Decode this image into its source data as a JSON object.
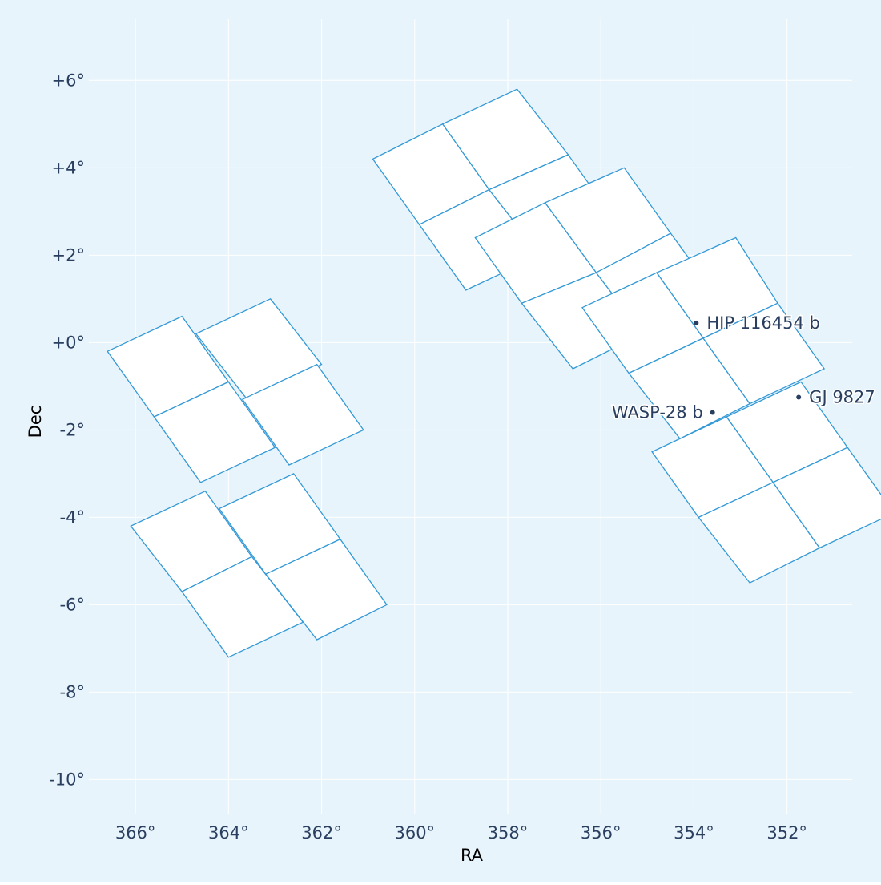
{
  "chart_data": {
    "type": "scatter",
    "title": "",
    "xlabel": "RA",
    "ylabel": "Dec",
    "xlim": [
      367.0,
      350.6
    ],
    "ylim": [
      -10.8,
      7.4
    ],
    "x_ticks": [
      366,
      364,
      362,
      360,
      358,
      356,
      354,
      352
    ],
    "x_tick_labels": [
      "366°",
      "364°",
      "362°",
      "360°",
      "358°",
      "356°",
      "354°",
      "352°"
    ],
    "y_ticks": [
      6,
      4,
      2,
      0,
      -2,
      -4,
      -6,
      -8,
      -10
    ],
    "y_tick_labels": [
      "+6°",
      "+4°",
      "+2°",
      "+0°",
      "-2°",
      "-4°",
      "-6°",
      "-8°",
      "-10°"
    ],
    "grid": true,
    "colors": {
      "background": "#e8f4fb",
      "grid": "#ffffff",
      "footprint": "#3399d6",
      "footprint_fill": "#ffffff",
      "text": "#2a3f5f",
      "marker": "#2a3f5f"
    },
    "series": [
      {
        "kind": "ccd-footprints",
        "tiles": [
          [
            [
              357.8,
              5.8
            ],
            [
              359.4,
              5.0
            ],
            [
              358.4,
              3.5
            ],
            [
              356.7,
              4.3
            ]
          ],
          [
            [
              359.4,
              5.0
            ],
            [
              360.9,
              4.2
            ],
            [
              359.9,
              2.7
            ],
            [
              358.4,
              3.5
            ]
          ],
          [
            [
              358.4,
              3.5
            ],
            [
              359.9,
              2.7
            ],
            [
              358.9,
              1.2
            ],
            [
              357.3,
              2.0
            ]
          ],
          [
            [
              356.7,
              4.3
            ],
            [
              358.4,
              3.5
            ],
            [
              357.3,
              2.0
            ],
            [
              355.7,
              2.8
            ]
          ],
          [
            [
              355.5,
              4.0
            ],
            [
              357.2,
              3.2
            ],
            [
              356.1,
              1.6
            ],
            [
              354.5,
              2.5
            ]
          ],
          [
            [
              357.2,
              3.2
            ],
            [
              358.7,
              2.4
            ],
            [
              357.7,
              0.9
            ],
            [
              356.1,
              1.6
            ]
          ],
          [
            [
              356.1,
              1.6
            ],
            [
              357.7,
              0.9
            ],
            [
              356.6,
              -0.6
            ],
            [
              355.1,
              0.2
            ]
          ],
          [
            [
              354.5,
              2.5
            ],
            [
              356.1,
              1.6
            ],
            [
              355.1,
              0.2
            ],
            [
              353.4,
              0.9
            ]
          ],
          [
            [
              353.1,
              2.4
            ],
            [
              354.8,
              1.6
            ],
            [
              353.8,
              0.1
            ],
            [
              352.2,
              0.9
            ]
          ],
          [
            [
              354.8,
              1.6
            ],
            [
              356.4,
              0.8
            ],
            [
              355.4,
              -0.7
            ],
            [
              353.8,
              0.1
            ]
          ],
          [
            [
              353.8,
              0.1
            ],
            [
              355.4,
              -0.7
            ],
            [
              354.3,
              -2.2
            ],
            [
              352.8,
              -1.4
            ]
          ],
          [
            [
              352.2,
              0.9
            ],
            [
              353.8,
              0.1
            ],
            [
              352.8,
              -1.4
            ],
            [
              351.2,
              -0.6
            ]
          ],
          [
            [
              351.7,
              -0.9
            ],
            [
              353.3,
              -1.7
            ],
            [
              352.3,
              -3.2
            ],
            [
              350.7,
              -2.4
            ]
          ],
          [
            [
              353.3,
              -1.7
            ],
            [
              354.9,
              -2.5
            ],
            [
              353.9,
              -4.0
            ],
            [
              352.3,
              -3.2
            ]
          ],
          [
            [
              352.3,
              -3.2
            ],
            [
              353.9,
              -4.0
            ],
            [
              352.8,
              -5.5
            ],
            [
              351.3,
              -4.7
            ]
          ],
          [
            [
              350.7,
              -2.4
            ],
            [
              352.3,
              -3.2
            ],
            [
              351.3,
              -4.7
            ],
            [
              349.7,
              -3.9
            ]
          ],
          [
            [
              365.0,
              0.6
            ],
            [
              366.6,
              -0.2
            ],
            [
              365.6,
              -1.7
            ],
            [
              364.0,
              -0.9
            ]
          ],
          [
            [
              363.1,
              1.0
            ],
            [
              364.7,
              0.2
            ],
            [
              363.6,
              -1.3
            ],
            [
              362.0,
              -0.5
            ]
          ],
          [
            [
              364.0,
              -0.9
            ],
            [
              365.6,
              -1.7
            ],
            [
              364.6,
              -3.2
            ],
            [
              363.0,
              -2.4
            ]
          ],
          [
            [
              362.1,
              -0.5
            ],
            [
              363.7,
              -1.3
            ],
            [
              362.7,
              -2.8
            ],
            [
              361.1,
              -2.0
            ]
          ],
          [
            [
              364.5,
              -3.4
            ],
            [
              366.1,
              -4.2
            ],
            [
              365.0,
              -5.7
            ],
            [
              363.5,
              -4.9
            ]
          ],
          [
            [
              362.6,
              -3.0
            ],
            [
              364.2,
              -3.8
            ],
            [
              363.2,
              -5.3
            ],
            [
              361.6,
              -4.5
            ]
          ],
          [
            [
              363.5,
              -4.9
            ],
            [
              365.0,
              -5.7
            ],
            [
              364.0,
              -7.2
            ],
            [
              362.4,
              -6.4
            ]
          ],
          [
            [
              361.6,
              -4.5
            ],
            [
              363.2,
              -5.3
            ],
            [
              362.1,
              -6.8
            ],
            [
              360.6,
              -6.0
            ]
          ]
        ]
      }
    ],
    "annotations": [
      {
        "label": "HIP 116454 b",
        "ra": 353.95,
        "dec": 0.45
      },
      {
        "label": "GJ 9827",
        "ra": 351.75,
        "dec": -1.25
      },
      {
        "label": "WASP-28 b",
        "ra": 353.6,
        "dec": -1.6
      }
    ]
  }
}
